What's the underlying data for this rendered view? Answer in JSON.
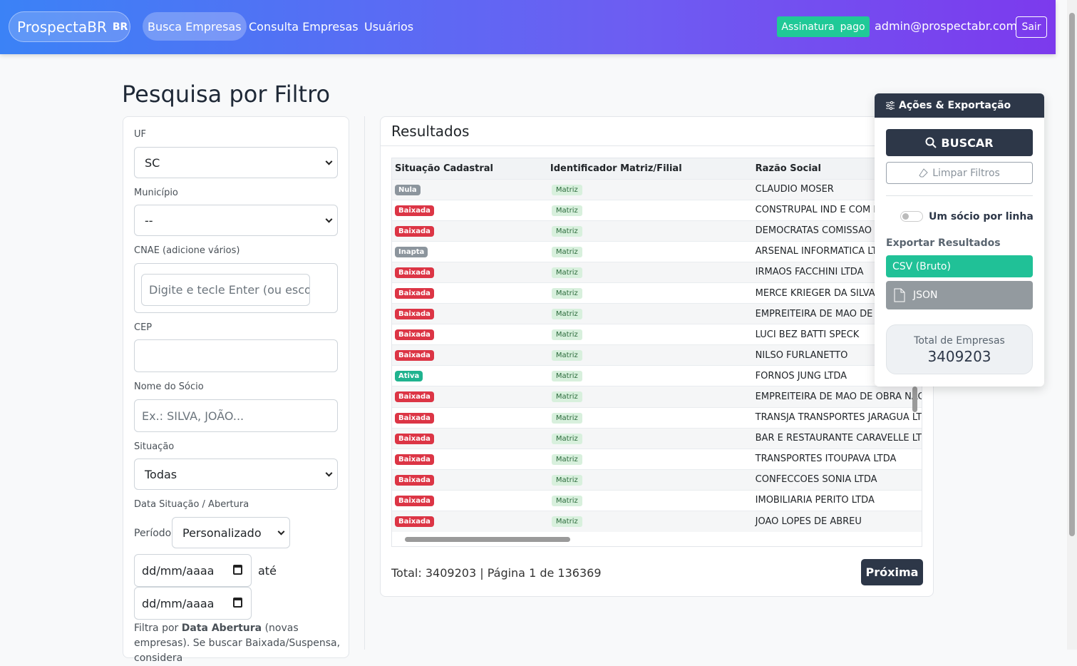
{
  "nav": {
    "brand": "ProspectaBR",
    "brand_badge": "BR",
    "links": [
      "Busca Empresas",
      "Consulta Empresas",
      "Usuários"
    ],
    "subscription": "Assinatura",
    "subscription_status": "pago",
    "user": "admin@prospectabr.com",
    "logout": "Sair"
  },
  "page_title": "Pesquisa por Filtro",
  "filters": {
    "uf": {
      "label": "UF",
      "value": "SC"
    },
    "municipio": {
      "label": "Município",
      "value": "--"
    },
    "cnae": {
      "label": "CNAE (adicione vários)",
      "placeholder": "Digite e tecle Enter (ou escol"
    },
    "cep": {
      "label": "CEP"
    },
    "socio": {
      "label": "Nome do Sócio",
      "placeholder": "Ex.: SILVA, JOÃO..."
    },
    "situacao": {
      "label": "Situação",
      "value": "Todas"
    },
    "data": {
      "label": "Data Situação / Abertura",
      "periodo_label": "Período",
      "periodo": "Personalizado",
      "date_placeholder": "dd/mm/aaaa",
      "until": "até"
    },
    "note": {
      "prefix": "Filtra por",
      "bold": "Data Abertura",
      "suffix": "(novas empresas). Se buscar Baixada/Suspensa, considera"
    }
  },
  "results": {
    "title": "Resultados",
    "columns": [
      "Situação Cadastral",
      "Identificador Matriz/Filial",
      "Razão Social"
    ],
    "rows": [
      {
        "status": "Nula",
        "status_color": "#8c959d",
        "type": "Matriz",
        "name": "CLAUDIO MOSER"
      },
      {
        "status": "Baixada",
        "status_color": "#dc3545",
        "type": "Matriz",
        "name": "CONSTRUPAL IND E COM DO MATERIAL DE CONSTRUCAO LT"
      },
      {
        "status": "Baixada",
        "status_color": "#dc3545",
        "type": "Matriz",
        "name": "DEMOCRATAS COMISSAO PROVISORIA MUNICIPAL RIO DOS"
      },
      {
        "status": "Inapta",
        "status_color": "#8c959d",
        "type": "Matriz",
        "name": "ARSENAL INFORMATICA LTDA"
      },
      {
        "status": "Baixada",
        "status_color": "#dc3545",
        "type": "Matriz",
        "name": "IRMAOS FACCHINI LTDA"
      },
      {
        "status": "Baixada",
        "status_color": "#dc3545",
        "type": "Matriz",
        "name": "MERCE KRIEGER DA SILVA"
      },
      {
        "status": "Baixada",
        "status_color": "#dc3545",
        "type": "Matriz",
        "name": "EMPREITEIRA DE MAO DE OBRA WEIDGENANT LTDA"
      },
      {
        "status": "Baixada",
        "status_color": "#dc3545",
        "type": "Matriz",
        "name": "LUCI BEZ BATTI SPECK"
      },
      {
        "status": "Baixada",
        "status_color": "#dc3545",
        "type": "Matriz",
        "name": "NILSO FURLANETTO"
      },
      {
        "status": "Ativa",
        "status_color": "#20b38f",
        "type": "Matriz",
        "name": "FORNOS JUNG LTDA"
      },
      {
        "status": "Baixada",
        "status_color": "#dc3545",
        "type": "Matriz",
        "name": "EMPREITEIRA DE MAO DE OBRA NACIONAL LTDA"
      },
      {
        "status": "Baixada",
        "status_color": "#dc3545",
        "type": "Matriz",
        "name": "TRANSJA TRANSPORTES JARAGUA LTDA"
      },
      {
        "status": "Baixada",
        "status_color": "#dc3545",
        "type": "Matriz",
        "name": "BAR E RESTAURANTE CARAVELLE LTDA"
      },
      {
        "status": "Baixada",
        "status_color": "#dc3545",
        "type": "Matriz",
        "name": "TRANSPORTES ITOUPAVA LTDA"
      },
      {
        "status": "Baixada",
        "status_color": "#dc3545",
        "type": "Matriz",
        "name": "CONFECCOES SONIA LTDA"
      },
      {
        "status": "Baixada",
        "status_color": "#dc3545",
        "type": "Matriz",
        "name": "IMOBILIARIA PERITO LTDA"
      },
      {
        "status": "Baixada",
        "status_color": "#dc3545",
        "type": "Matriz",
        "name": "JOAO LOPES DE ABREU"
      }
    ],
    "footer": {
      "label": "Total:",
      "total": 3409203,
      "separator": "|",
      "page": "Página 1 de 136369"
    },
    "next": "Próxima"
  },
  "actions": {
    "title": "Ações & Exportação",
    "search": "BUSCAR",
    "clear": "Limpar Filtros",
    "toggle": "Um sócio por linha",
    "export_title": "Exportar Resultados",
    "csv": "CSV (Bruto)",
    "json": "JSON",
    "total_label": "Total de Empresas",
    "total": 3409203
  }
}
